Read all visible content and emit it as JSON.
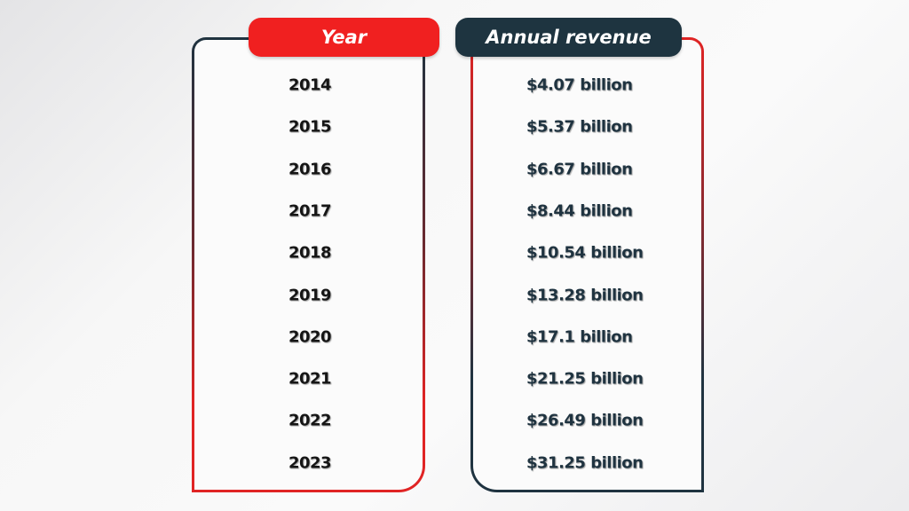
{
  "colors": {
    "accent_red": "#f02020",
    "dark": "#1e3440"
  },
  "chart_data": {
    "type": "table",
    "columns": [
      "Year",
      "Annual revenue"
    ],
    "rows": [
      [
        "2014",
        "$4.07 billion"
      ],
      [
        "2015",
        "$5.37 billion"
      ],
      [
        "2016",
        "$6.67 billion"
      ],
      [
        "2017",
        "$8.44 billion"
      ],
      [
        "2018",
        "$10.54 billion"
      ],
      [
        "2019",
        "$13.28 billion"
      ],
      [
        "2020",
        "$17.1 billion"
      ],
      [
        "2021",
        "$21.25 billion"
      ],
      [
        "2022",
        "$26.49 billion"
      ],
      [
        "2023",
        "$31.25 billion"
      ]
    ]
  }
}
